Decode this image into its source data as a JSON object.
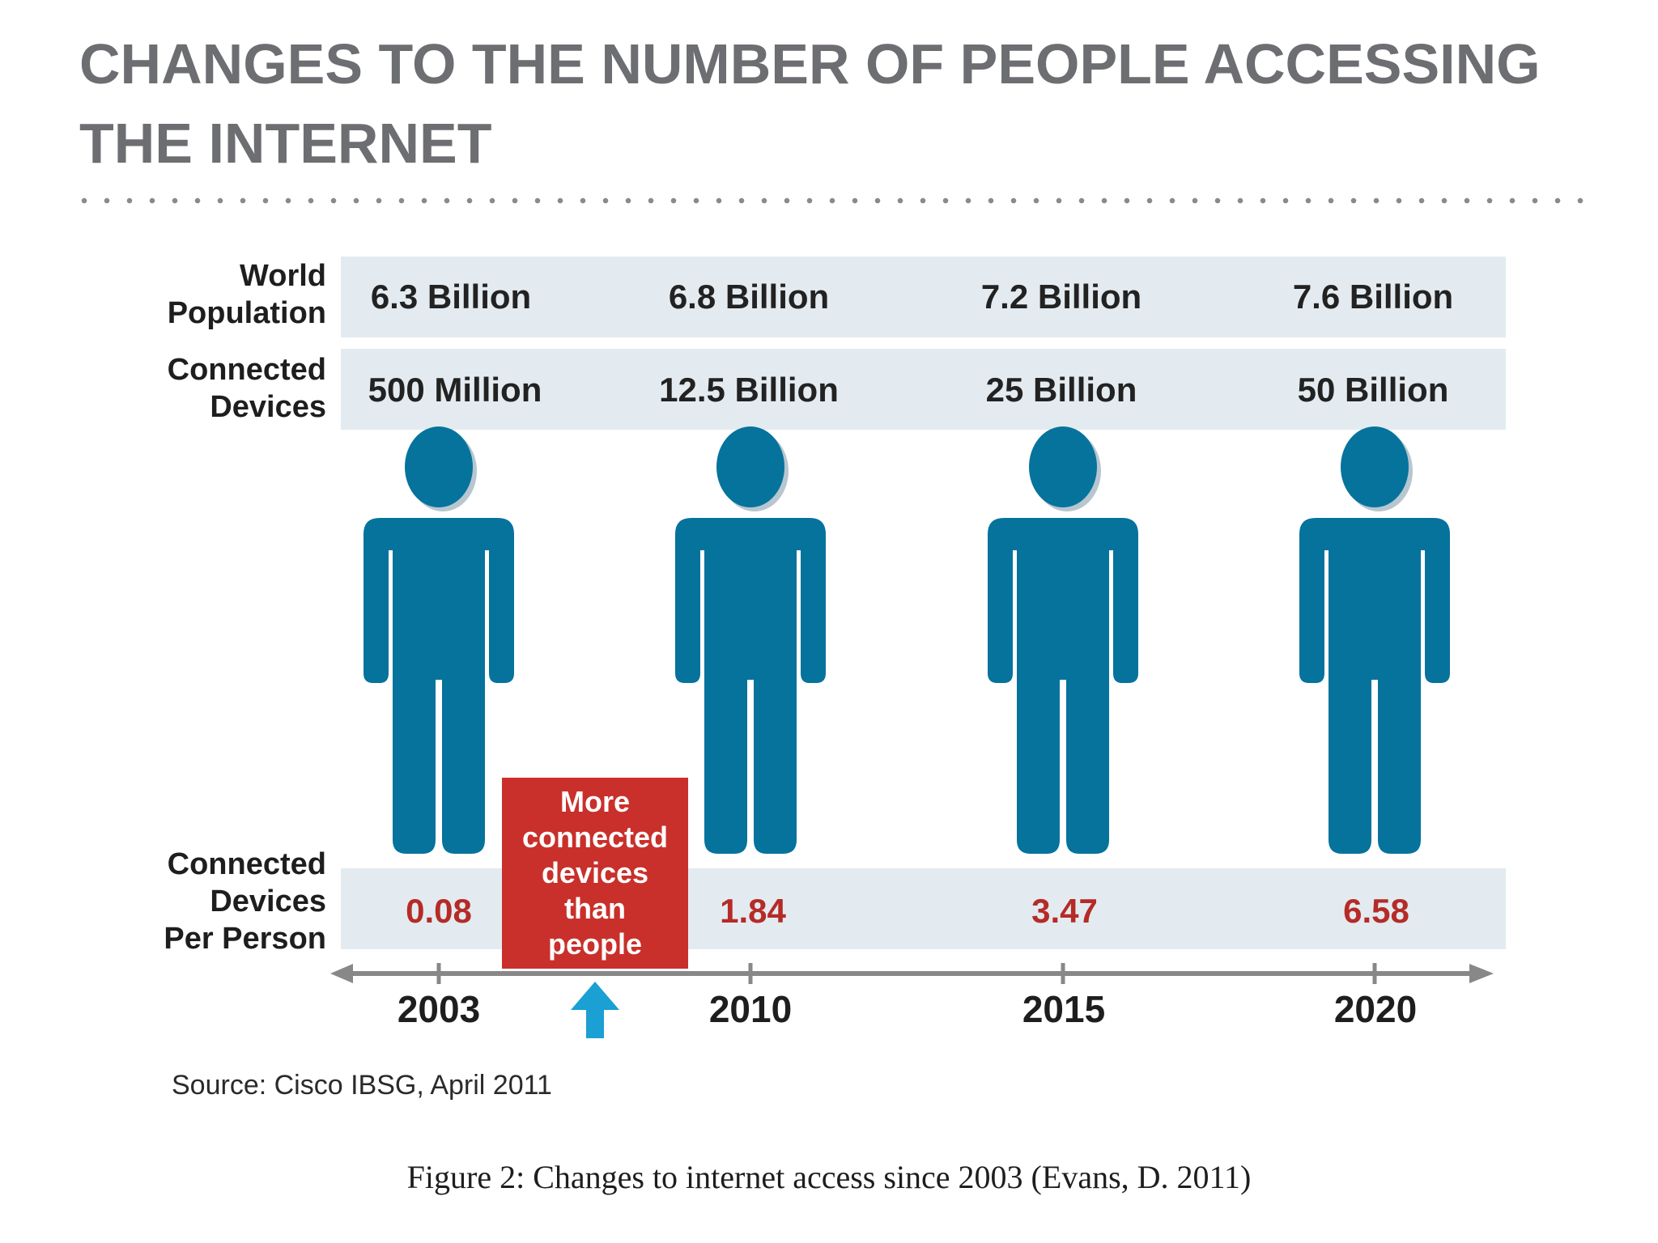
{
  "page": {
    "title": "CHANGES TO THE NUMBER OF PEOPLE ACCESSING THE INTERNET",
    "caption": "Figure 2: Changes to internet access since 2003 (Evans, D. 2011)"
  },
  "chart_data": {
    "type": "table",
    "title": "",
    "years": [
      "2003",
      "2010",
      "2015",
      "2020"
    ],
    "rows": [
      {
        "label": [
          "World",
          "Population"
        ],
        "values": [
          "6.3 Billion",
          "6.8 Billion",
          "7.2 Billion",
          "7.6 Billion"
        ]
      },
      {
        "label": [
          "Connected",
          "Devices"
        ],
        "values": [
          "500 Million",
          "12.5 Billion",
          "25 Billion",
          "50 Billion"
        ]
      },
      {
        "label": [
          "Connected",
          "Devices",
          "Per Person"
        ],
        "values": [
          "0.08",
          "1.84",
          "3.47",
          "6.58"
        ]
      }
    ],
    "callout": [
      "More",
      "connected",
      "devices",
      "than",
      "people"
    ],
    "source": "Source: Cisco IBSG, April 2011",
    "colors": {
      "figure": "#05739c",
      "accent": "#c9302b",
      "band": "#e3ebf0",
      "arrow": "#1aa0d2",
      "axis": "#888888"
    }
  }
}
